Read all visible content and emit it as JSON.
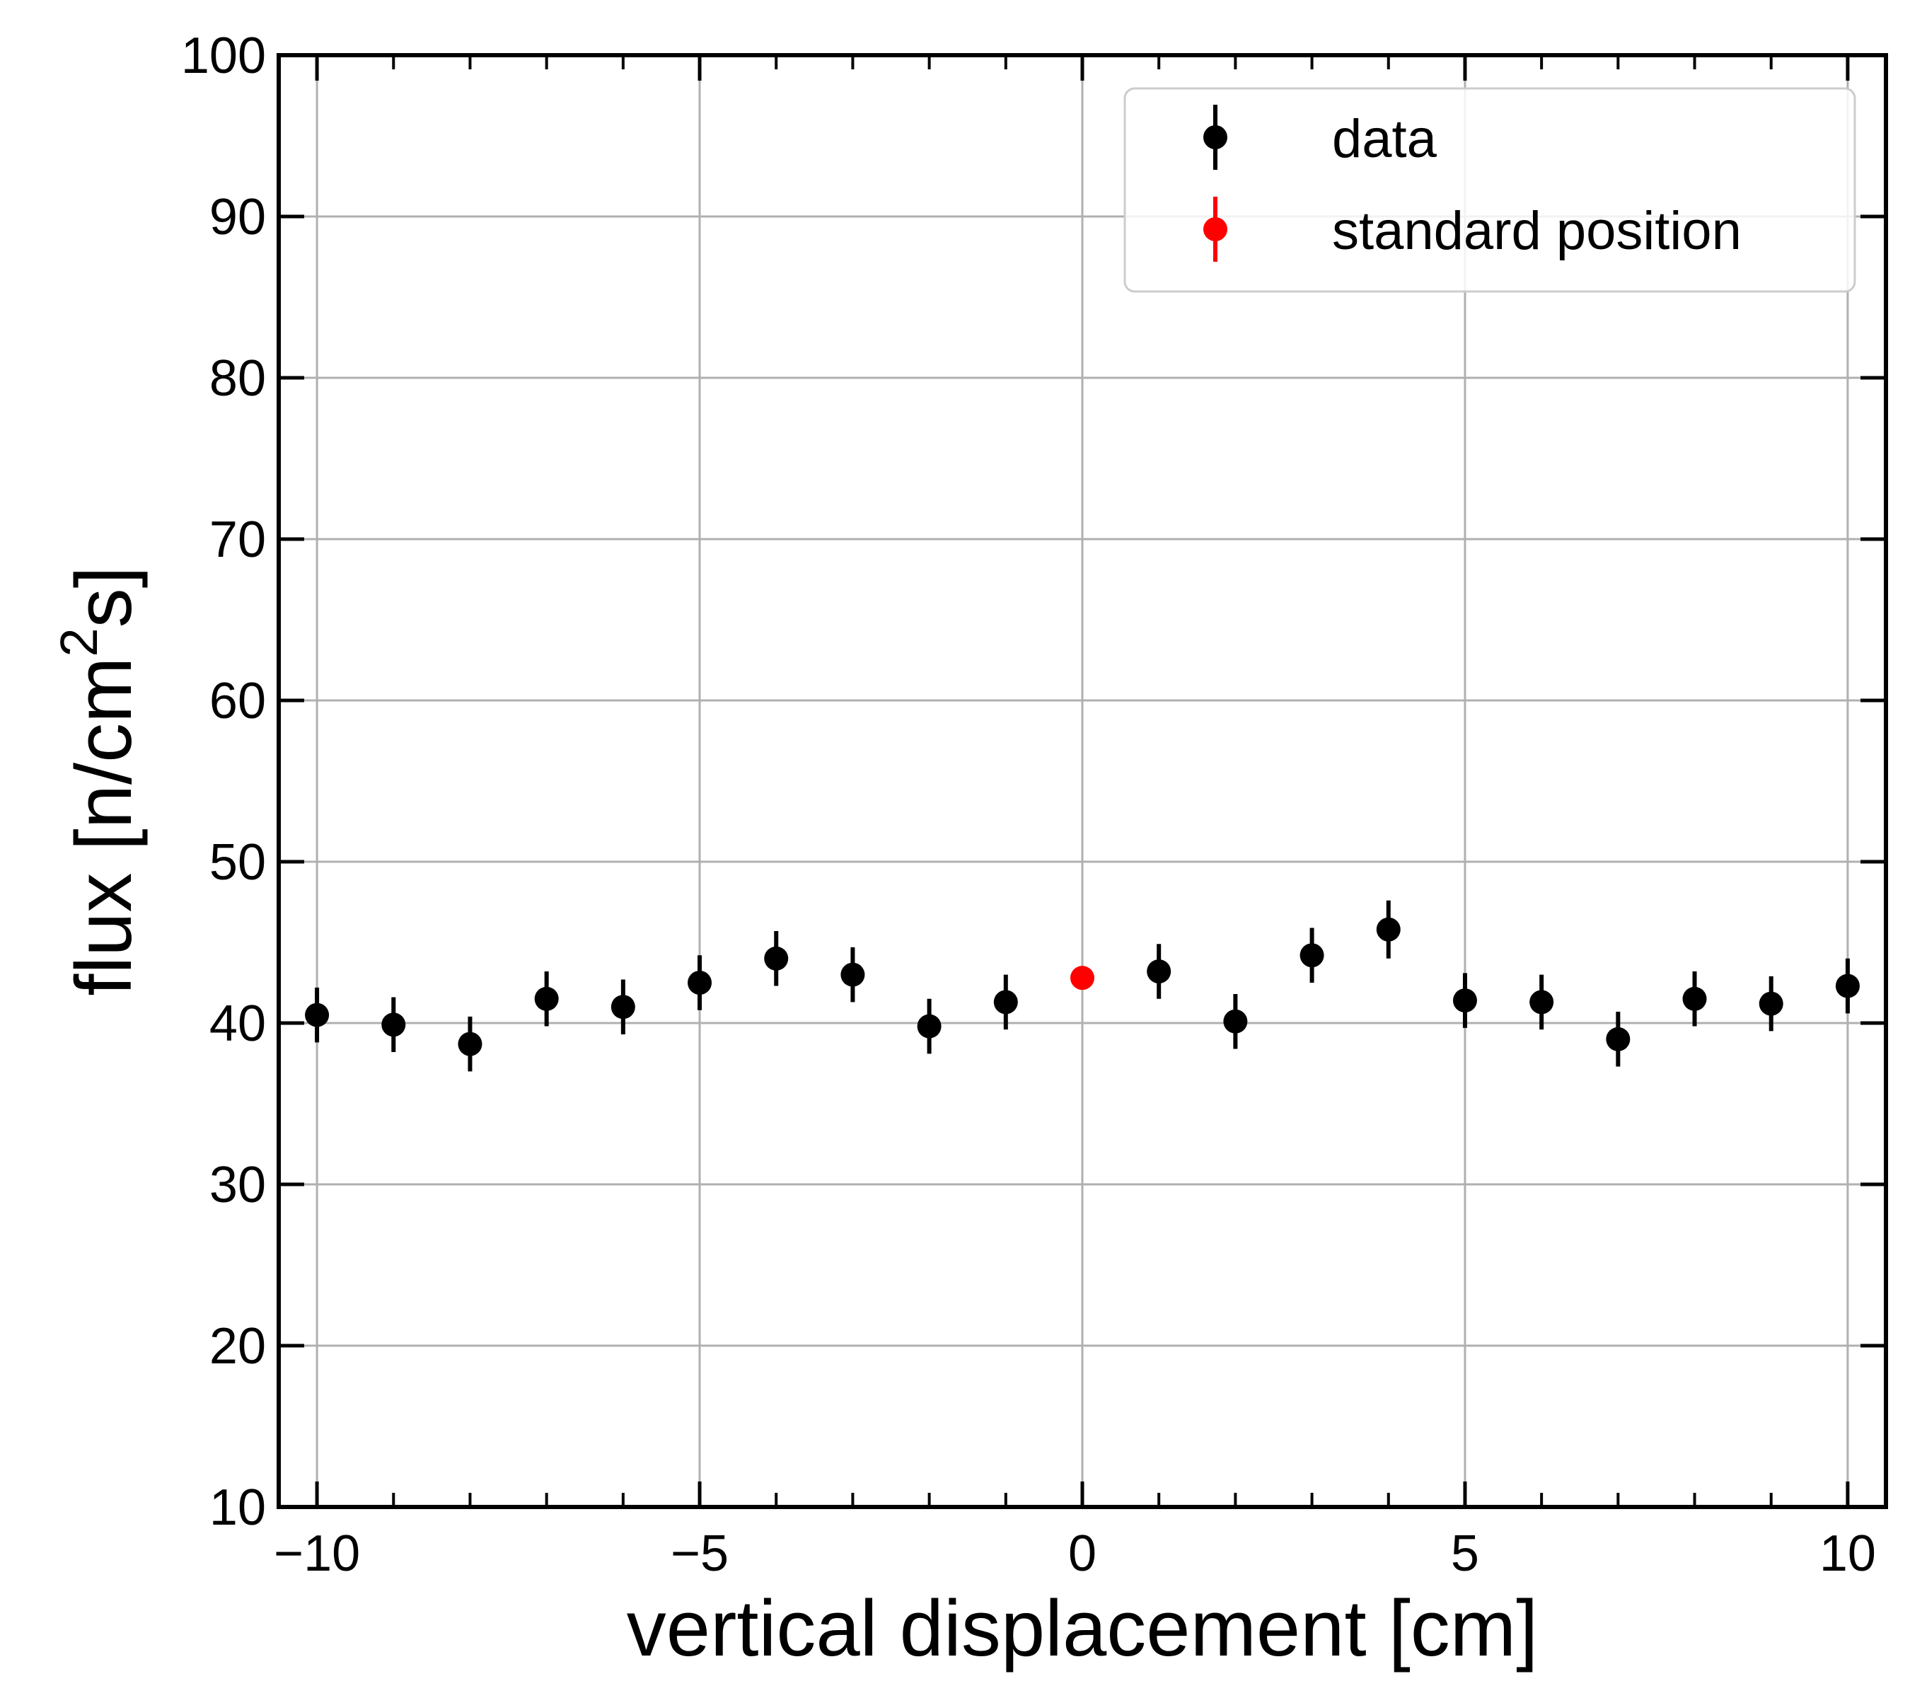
{
  "chart_data": {
    "type": "scatter",
    "xlabel": "vertical displacement [cm]",
    "ylabel_main": "flux [n/cm",
    "ylabel_sup": "2",
    "ylabel_end": "s]",
    "xlim": [
      -10.5,
      10.5
    ],
    "ylim": [
      10,
      100
    ],
    "grid": true,
    "legend_position": "top-right",
    "x_ticks": [
      -10,
      -5,
      0,
      5,
      10
    ],
    "x_tick_labels": [
      "−10",
      "−5",
      "0",
      "5",
      "10"
    ],
    "y_ticks": [
      10,
      20,
      30,
      40,
      50,
      60,
      70,
      80,
      90,
      100
    ],
    "y_tick_labels": [
      "10",
      "20",
      "30",
      "40",
      "50",
      "60",
      "70",
      "80",
      "90",
      "100"
    ],
    "series": [
      {
        "name": "data",
        "color": "#000000",
        "points": [
          {
            "x": -10,
            "y": 40.5,
            "err": 1.7
          },
          {
            "x": -9,
            "y": 39.9,
            "err": 1.7
          },
          {
            "x": -8,
            "y": 38.7,
            "err": 1.7
          },
          {
            "x": -7,
            "y": 41.5,
            "err": 1.7
          },
          {
            "x": -6,
            "y": 41.0,
            "err": 1.7
          },
          {
            "x": -5,
            "y": 42.5,
            "err": 1.7
          },
          {
            "x": -4,
            "y": 44.0,
            "err": 1.7
          },
          {
            "x": -3,
            "y": 43.0,
            "err": 1.7
          },
          {
            "x": -2,
            "y": 39.8,
            "err": 1.7
          },
          {
            "x": -1,
            "y": 41.3,
            "err": 1.7
          },
          {
            "x": 1,
            "y": 43.2,
            "err": 1.7
          },
          {
            "x": 2,
            "y": 40.1,
            "err": 1.7
          },
          {
            "x": 3,
            "y": 44.2,
            "err": 1.7
          },
          {
            "x": 4,
            "y": 45.8,
            "err": 1.8
          },
          {
            "x": 5,
            "y": 41.4,
            "err": 1.7
          },
          {
            "x": 6,
            "y": 41.3,
            "err": 1.7
          },
          {
            "x": 7,
            "y": 39.0,
            "err": 1.7
          },
          {
            "x": 8,
            "y": 41.5,
            "err": 1.7
          },
          {
            "x": 9,
            "y": 41.2,
            "err": 1.7
          },
          {
            "x": 10,
            "y": 42.3,
            "err": 1.7
          }
        ]
      },
      {
        "name": "standard position",
        "color": "#ff0000",
        "points": [
          {
            "x": 0,
            "y": 42.8,
            "err": 0
          }
        ]
      }
    ]
  },
  "colors": {
    "grid": "#b0b0b0",
    "axis": "#000000",
    "legend_border": "#cccccc"
  }
}
